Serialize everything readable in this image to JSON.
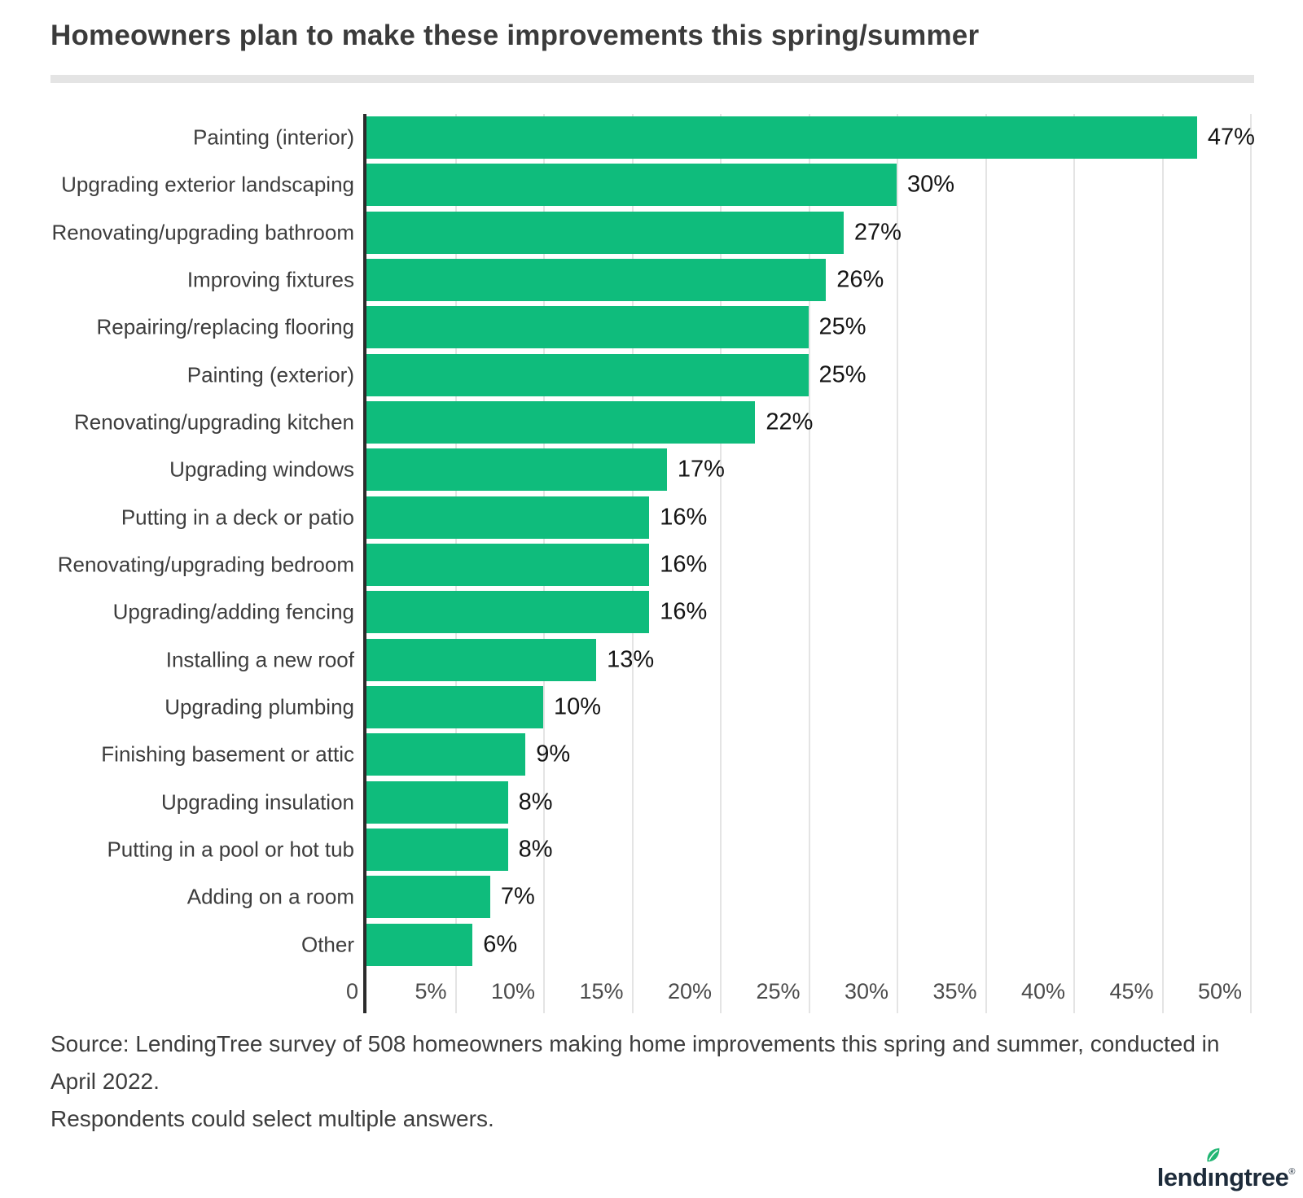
{
  "title": "Homeowners plan to make these improvements this spring/summer",
  "chart_data": {
    "type": "bar",
    "orientation": "horizontal",
    "title": "Homeowners plan to make these improvements this spring/summer",
    "categories": [
      "Painting (interior)",
      "Upgrading exterior landscaping",
      "Renovating/upgrading bathroom",
      "Improving fixtures",
      "Repairing/replacing flooring",
      "Painting (exterior)",
      "Renovating/upgrading kitchen",
      "Upgrading windows",
      "Putting in a deck or patio",
      "Renovating/upgrading bedroom",
      "Upgrading/adding fencing",
      "Installing a new roof",
      "Upgrading plumbing",
      "Finishing basement or attic",
      "Upgrading insulation",
      "Putting in a pool or hot tub",
      "Adding on a room",
      "Other"
    ],
    "values": [
      47,
      30,
      27,
      26,
      25,
      25,
      22,
      17,
      16,
      16,
      16,
      13,
      10,
      9,
      8,
      8,
      7,
      6
    ],
    "value_suffix": "%",
    "xlabel": "",
    "ylabel": "",
    "xlim": [
      0,
      50
    ],
    "tick_values": [
      0,
      5,
      10,
      15,
      20,
      25,
      30,
      35,
      40,
      45,
      50
    ],
    "tick_labels": [
      "0",
      "5%",
      "10%",
      "15%",
      "20%",
      "25%",
      "30%",
      "35%",
      "40%",
      "45%",
      "50%"
    ],
    "grid": "vertical",
    "legend": "none",
    "bar_color": "#0fbc7c",
    "axis_color": "#2b2b2b",
    "gridline_color": "#e4e4e4"
  },
  "source": {
    "line1": "Source: LendingTree survey of 508 homeowners making home improvements this spring and summer, conducted in April 2022.",
    "line2": "Respondents could select multiple answers."
  },
  "logo": {
    "text": "lendingtree",
    "registered": "®",
    "leaf_color": "#21b673",
    "text_color": "#1d2b3a"
  }
}
